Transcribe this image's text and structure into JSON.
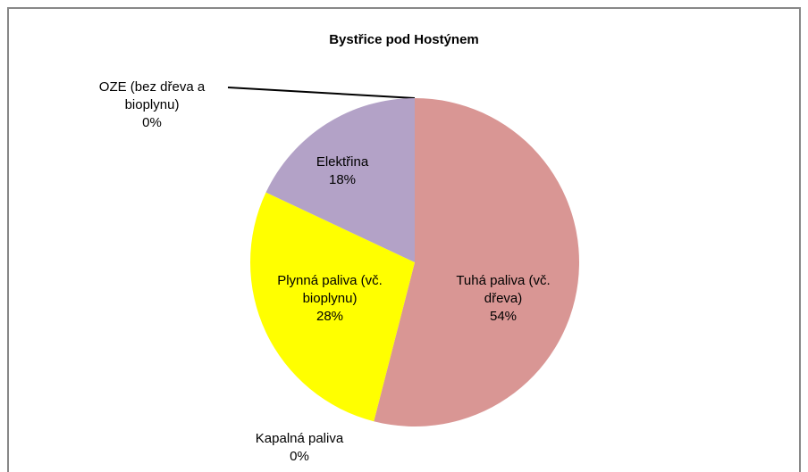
{
  "chart_data": {
    "type": "pie",
    "title": "Bystřice pod Hostýnem",
    "categories": [
      "Tuhá paliva (vč. dřeva)",
      "Kapalná paliva",
      "Plynná paliva (vč. bioplynu)",
      "Elektřina",
      "OZE (bez dřeva a bioplynu)"
    ],
    "values": [
      54,
      0,
      28,
      18,
      0
    ],
    "value_labels": [
      "54%",
      "0%",
      "28%",
      "18%",
      "0%"
    ],
    "colors": [
      "#d99694",
      "#4bacc6",
      "#ffff00",
      "#b3a2c7",
      "#9bbb59"
    ]
  }
}
